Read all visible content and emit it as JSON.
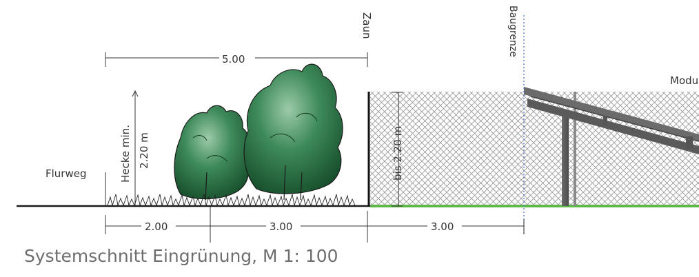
{
  "labels": {
    "flurweg": "Flurweg",
    "hedge_line1": "Hecke min.",
    "hedge_line2": "2.20 m",
    "fence": "Zaun",
    "building_limit": "Baugrenze",
    "fence_height": "bis 2.20 m",
    "module": "Modu"
  },
  "dimensions": {
    "top_total": "5.00",
    "bottom": [
      "2.00",
      "3.00",
      "3.00"
    ]
  },
  "caption": "Systemschnitt Eingrünung, M 1: 100",
  "colors": {
    "ground": "#1a1a1a",
    "grass": "#5fb94a",
    "hedge_dark": "#1e6b3c",
    "hedge_light": "#7fb892",
    "fence_mesh": "#9a9a9a",
    "structure": "#5a5a5a",
    "building_limit_line": "#4a6fd0"
  }
}
